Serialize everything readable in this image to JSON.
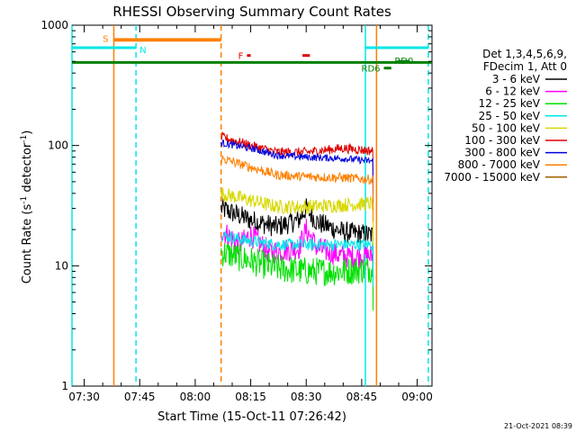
{
  "chart_data": {
    "type": "line",
    "title": "RHESSI Observing Summary Count Rates",
    "xlabel": "Start Time (15-Oct-11 07:26:42)",
    "ylabel_prefix": "Count Rate (s",
    "ylabel_sup1": "-1",
    "ylabel_mid": " detector",
    "ylabel_sup2": "-1",
    "ylabel_suffix": ")",
    "footer": "21-Oct-2021 08:39",
    "y_scale": "log",
    "ylim": [
      1,
      1000
    ],
    "xlim": [
      "07:26:42",
      "09:04:00"
    ],
    "x_ticks": [
      "07:30",
      "07:45",
      "08:00",
      "08:15",
      "08:30",
      "08:45",
      "09:00"
    ],
    "y_ticks": [
      "1",
      "10",
      "100",
      "1000"
    ],
    "legend": {
      "header": [
        "Det 1,3,4,5,6,9,",
        "FDecim 1, Att 0"
      ],
      "entries": [
        {
          "label": "3 - 6 keV",
          "color": "#000000"
        },
        {
          "label": "6 - 12 keV",
          "color": "#ff00ff"
        },
        {
          "label": "12 - 25 keV",
          "color": "#00e000"
        },
        {
          "label": "25 - 50 keV",
          "color": "#00e8e8"
        },
        {
          "label": "50 - 100 keV",
          "color": "#d8d800"
        },
        {
          "label": "100 - 300 keV",
          "color": "#e00000"
        },
        {
          "label": "300 - 800 keV",
          "color": "#0000e0"
        },
        {
          "label": "800 - 7000 keV",
          "color": "#ff8000"
        },
        {
          "label": "7000 - 15000 keV",
          "color": "#a06000"
        }
      ]
    },
    "series": [
      {
        "name": "3 - 6 keV",
        "color": "#000000",
        "x": [
          "08:07",
          "08:15",
          "08:22",
          "08:28",
          "08:30",
          "08:33",
          "08:40",
          "08:48"
        ],
        "y": [
          30,
          24,
          21,
          24,
          30,
          23,
          19,
          18
        ],
        "noise": 0.09
      },
      {
        "name": "6 - 12 keV",
        "color": "#ff00ff",
        "x": [
          "08:07",
          "08:12",
          "08:15",
          "08:20",
          "08:28",
          "08:30",
          "08:33",
          "08:40",
          "08:48"
        ],
        "y": [
          20,
          15,
          18,
          13,
          14,
          20,
          14,
          12,
          12
        ],
        "noise": 0.1
      },
      {
        "name": "12 - 25 keV",
        "color": "#00e000",
        "x": [
          "08:07",
          "08:15",
          "08:22",
          "08:30",
          "08:40",
          "08:48"
        ],
        "y": [
          13,
          11,
          9.5,
          9,
          9,
          9.5
        ],
        "noise": 0.12
      },
      {
        "name": "25 - 50 keV",
        "color": "#00e8e8",
        "x": [
          "08:07",
          "08:15",
          "08:22",
          "08:30",
          "08:40",
          "08:48"
        ],
        "y": [
          18,
          16,
          15,
          15,
          15,
          15
        ],
        "noise": 0.05
      },
      {
        "name": "50 - 100 keV",
        "color": "#d8d800",
        "x": [
          "08:07",
          "08:15",
          "08:22",
          "08:30",
          "08:40",
          "08:48"
        ],
        "y": [
          40,
          35,
          31,
          31,
          32,
          33
        ],
        "noise": 0.06
      },
      {
        "name": "100 - 300 keV",
        "color": "#e00000",
        "x": [
          "08:07",
          "08:15",
          "08:22",
          "08:30",
          "08:40",
          "08:48"
        ],
        "y": [
          118,
          100,
          88,
          88,
          95,
          90
        ],
        "noise": 0.04
      },
      {
        "name": "300 - 800 keV",
        "color": "#0000e0",
        "x": [
          "08:07",
          "08:15",
          "08:22",
          "08:30",
          "08:40",
          "08:48"
        ],
        "y": [
          105,
          95,
          83,
          80,
          78,
          74
        ],
        "noise": 0.03
      },
      {
        "name": "800 - 7000 keV",
        "color": "#ff8000",
        "x": [
          "08:07",
          "08:15",
          "08:22",
          "08:30",
          "08:40",
          "08:48"
        ],
        "y": [
          78,
          66,
          57,
          55,
          54,
          52
        ],
        "noise": 0.04
      }
    ],
    "flags": [
      {
        "label": "S",
        "color": "#ff8000",
        "x": [
          "07:38",
          "08:07"
        ],
        "y": 750
      },
      {
        "label": "N",
        "color": "#00e8e8",
        "x": [
          "07:26:42",
          "07:44"
        ],
        "y": 650
      },
      {
        "label": "",
        "color": "#ff8000",
        "x": [
          "07:38",
          "08:07"
        ],
        "y": 760
      },
      {
        "label": "F",
        "color": "#e00000",
        "x": [
          "08:14",
          "08:15"
        ],
        "y": 560
      },
      {
        "label": "",
        "color": "#e00000",
        "x": [
          "08:29",
          "08:31"
        ],
        "y": 560
      },
      {
        "label": "",
        "color": "#00e8e8",
        "x": [
          "08:46",
          "09:03"
        ],
        "y": 650
      },
      {
        "label": "",
        "color": "#008000",
        "x": [
          "07:26:42",
          "09:04"
        ],
        "y": 490
      },
      {
        "label": "RD6",
        "color": "#008000",
        "x": [
          "08:51",
          "08:53"
        ],
        "y": 440
      },
      {
        "label": "RD0",
        "color": "#008000",
        "x": [
          "08:55",
          "08:58"
        ],
        "y": 500
      }
    ],
    "vlines": [
      {
        "x": "07:26:42",
        "color": "#00e8e8",
        "style": "solid"
      },
      {
        "x": "07:38",
        "color": "#ff8000",
        "style": "solid"
      },
      {
        "x": "07:44",
        "color": "#00e8e8",
        "style": "dashed"
      },
      {
        "x": "08:07",
        "color": "#ff8000",
        "style": "dashed"
      },
      {
        "x": "08:46",
        "color": "#00e8e8",
        "style": "solid"
      },
      {
        "x": "08:49",
        "color": "#ff8000",
        "style": "solid"
      },
      {
        "x": "09:03",
        "color": "#00e8e8",
        "style": "dashed"
      }
    ]
  }
}
